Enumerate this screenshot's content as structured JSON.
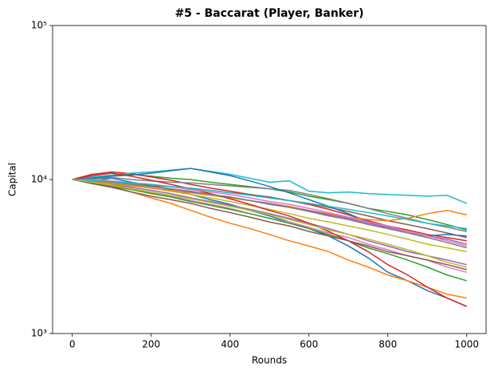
{
  "chart_data": {
    "type": "line",
    "title": "#5 - Baccarat (Player, Banker)",
    "x_label": "Rounds",
    "y_label": "Capital",
    "log_scale_y": true,
    "grid": false,
    "xlim": [
      -49.95,
      1048.95
    ],
    "xticks": [
      0,
      200,
      400,
      600,
      800,
      1000
    ],
    "ylim": [
      1000,
      100000
    ],
    "yticks": [
      {
        "value": 1000,
        "label": "10³"
      },
      {
        "value": 10000,
        "label": "10⁴"
      },
      {
        "value": 100000,
        "label": "10⁵"
      }
    ],
    "x": [
      0,
      50,
      100,
      150,
      200,
      250,
      300,
      350,
      400,
      450,
      500,
      550,
      600,
      650,
      700,
      750,
      800,
      850,
      900,
      950,
      1000
    ],
    "series": [
      {
        "color": "#1f77b4",
        "values": [
          10000,
          9800,
          10200,
          9600,
          9100,
          8600,
          8000,
          7400,
          6900,
          6300,
          5800,
          5300,
          4800,
          4300,
          3700,
          3100,
          2500,
          2200,
          1900,
          1700,
          1500
        ]
      },
      {
        "color": "#ff7f0e",
        "values": [
          10000,
          9500,
          9000,
          8300,
          7600,
          7000,
          6300,
          5700,
          5200,
          4800,
          4400,
          4000,
          3700,
          3400,
          3000,
          2700,
          2400,
          2200,
          2000,
          1800,
          1700
        ]
      },
      {
        "color": "#2ca02c",
        "values": [
          10000,
          10300,
          10600,
          10800,
          10500,
          10200,
          10000,
          9600,
          9300,
          9000,
          8700,
          8300,
          7800,
          7400,
          7000,
          6500,
          6200,
          5900,
          5500,
          5100,
          4700
        ]
      },
      {
        "color": "#d62728",
        "values": [
          10000,
          10800,
          11200,
          10900,
          10400,
          9900,
          9300,
          8800,
          8400,
          8000,
          7600,
          7300,
          6900,
          6400,
          5900,
          5400,
          5000,
          4700,
          4400,
          4200,
          4000
        ]
      },
      {
        "color": "#9467bd",
        "values": [
          10000,
          9700,
          9300,
          8900,
          8500,
          8100,
          7600,
          7200,
          6800,
          6400,
          6000,
          5600,
          5200,
          4800,
          4400,
          4000,
          3700,
          3400,
          3200,
          3000,
          2800
        ]
      },
      {
        "color": "#8c564b",
        "values": [
          10000,
          9900,
          9600,
          9400,
          9100,
          9000,
          8700,
          8500,
          8200,
          8000,
          7700,
          7300,
          7000,
          6600,
          6200,
          5800,
          5400,
          5100,
          4800,
          4500,
          4200
        ]
      },
      {
        "color": "#e377c2",
        "values": [
          10000,
          9600,
          9100,
          8700,
          8200,
          7800,
          7300,
          6900,
          6500,
          6000,
          5600,
          5300,
          4900,
          4500,
          4200,
          3800,
          3500,
          3200,
          3000,
          2700,
          2500
        ]
      },
      {
        "color": "#7f7f7f",
        "values": [
          10000,
          10100,
          10300,
          10000,
          9800,
          9600,
          9500,
          9300,
          9100,
          8900,
          8700,
          8500,
          8000,
          7500,
          7000,
          6500,
          6000,
          5600,
          5200,
          4900,
          4600
        ]
      },
      {
        "color": "#bcbd22",
        "values": [
          10000,
          9800,
          9500,
          9200,
          8800,
          8400,
          8000,
          7600,
          7200,
          6800,
          6400,
          6000,
          5600,
          5300,
          5000,
          4700,
          4400,
          4100,
          3800,
          3600,
          3400
        ]
      },
      {
        "color": "#17becf",
        "values": [
          10000,
          10400,
          10700,
          11000,
          11200,
          11500,
          11800,
          11300,
          10800,
          10200,
          9600,
          9800,
          8400,
          8200,
          8300,
          8100,
          8000,
          7900,
          7800,
          7900,
          7000
        ]
      },
      {
        "color": "#1f77b4",
        "values": [
          10000,
          10200,
          10500,
          10700,
          11000,
          11400,
          11800,
          11200,
          10600,
          9800,
          9000,
          8200,
          7400,
          6700,
          6000,
          5300,
          4800,
          4500,
          4300,
          4400,
          4300
        ]
      },
      {
        "color": "#ff7f0e",
        "values": [
          10000,
          9700,
          9400,
          9100,
          8800,
          8500,
          8200,
          7900,
          7600,
          7300,
          7000,
          6700,
          6300,
          6000,
          5700,
          5500,
          5400,
          5600,
          6000,
          6300,
          5900
        ]
      },
      {
        "color": "#2ca02c",
        "values": [
          10000,
          9500,
          9000,
          8600,
          8100,
          7700,
          7200,
          6800,
          6400,
          6000,
          5600,
          5200,
          4800,
          4400,
          4000,
          3600,
          3300,
          3000,
          2700,
          2400,
          2200
        ]
      },
      {
        "color": "#d62728",
        "values": [
          10000,
          10600,
          11000,
          10500,
          9900,
          9300,
          8700,
          8100,
          7500,
          6900,
          6300,
          5800,
          5200,
          4600,
          4000,
          3400,
          2800,
          2400,
          2000,
          1700,
          1500
        ]
      },
      {
        "color": "#9467bd",
        "values": [
          10000,
          9900,
          9700,
          9400,
          9000,
          8700,
          8300,
          8000,
          7700,
          7300,
          7000,
          6600,
          6300,
          5900,
          5600,
          5200,
          4900,
          4600,
          4300,
          4100,
          3800
        ]
      },
      {
        "color": "#8c564b",
        "values": [
          10000,
          9400,
          8900,
          8300,
          7800,
          7400,
          7000,
          6500,
          6100,
          5700,
          5300,
          5000,
          4600,
          4300,
          4000,
          3700,
          3400,
          3200,
          3000,
          2800,
          2600
        ]
      },
      {
        "color": "#e377c2",
        "values": [
          10000,
          10000,
          9800,
          9500,
          9300,
          9000,
          8600,
          8300,
          8000,
          7600,
          7200,
          6900,
          6500,
          6100,
          5700,
          5300,
          5000,
          4600,
          4300,
          4000,
          3700
        ]
      },
      {
        "color": "#7f7f7f",
        "values": [
          10000,
          9800,
          9600,
          9300,
          9000,
          8700,
          8400,
          8000,
          7700,
          7300,
          6900,
          6600,
          6200,
          5800,
          5500,
          5100,
          4800,
          4500,
          4200,
          3900,
          3600
        ]
      },
      {
        "color": "#bcbd22",
        "values": [
          10000,
          9600,
          9200,
          8700,
          8300,
          7900,
          7500,
          7100,
          6700,
          6300,
          5900,
          5500,
          5100,
          4700,
          4400,
          4100,
          3800,
          3500,
          3200,
          2900,
          2700
        ]
      },
      {
        "color": "#17becf",
        "values": [
          10000,
          9900,
          9700,
          9500,
          9300,
          9000,
          8800,
          8500,
          8200,
          7900,
          7600,
          7300,
          7000,
          6700,
          6400,
          6100,
          5800,
          5500,
          5200,
          5000,
          4800
        ]
      }
    ]
  }
}
